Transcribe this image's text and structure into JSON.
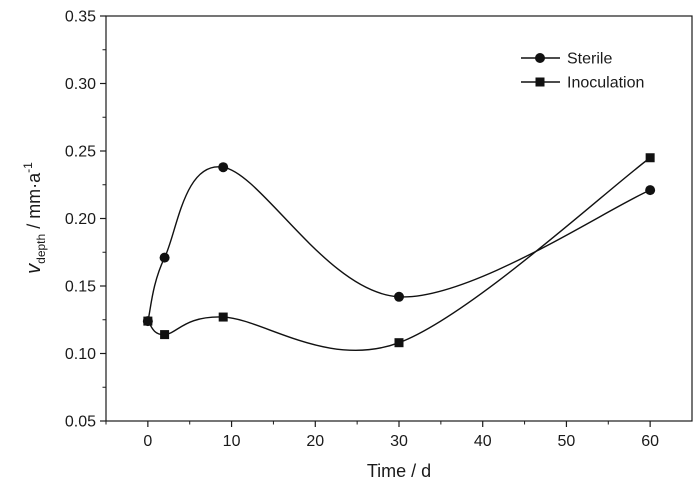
{
  "chart_data": {
    "type": "line",
    "title": "",
    "xlabel": "Time / d",
    "ylabel": {
      "main": "v",
      "subscript": "depth",
      "unit": " / mm·a",
      "superscript": "-1"
    },
    "xlim": [
      -5,
      65
    ],
    "ylim": [
      0.05,
      0.35
    ],
    "xticks": [
      "0",
      "10",
      "20",
      "30",
      "40",
      "50",
      "60"
    ],
    "yticks": [
      "0.05",
      "0.10",
      "0.15",
      "0.20",
      "0.25",
      "0.30",
      "0.35"
    ],
    "grid": false,
    "legend_position": "top-right",
    "series": [
      {
        "name": "Sterile",
        "marker": "circle",
        "x": [
          0,
          2,
          9,
          30,
          60
        ],
        "y": [
          0.124,
          0.171,
          0.238,
          0.142,
          0.221
        ]
      },
      {
        "name": "Inoculation",
        "marker": "square",
        "x": [
          0,
          2,
          9,
          30,
          60
        ],
        "y": [
          0.124,
          0.114,
          0.127,
          0.108,
          0.245
        ]
      }
    ]
  }
}
